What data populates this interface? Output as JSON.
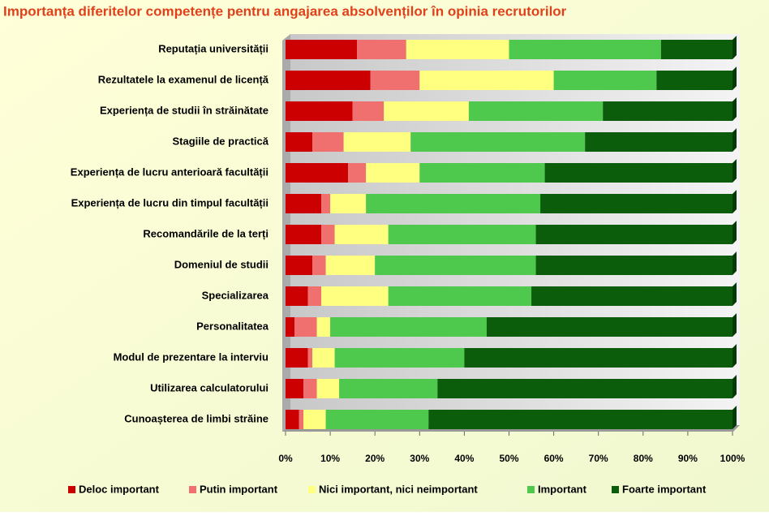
{
  "chart_data": {
    "type": "stacked-bar-horizontal",
    "title": "Importanța diferitelor competențe pentru angajarea absolvenților în opinia recrutorilor",
    "categories": [
      "Reputația universității",
      "Rezultatele la examenul  de licență",
      "Experiența de studii în străinătate",
      "Stagiile de practică",
      "Experiența de lucru anterioară facultății",
      "Experiența de lucru din timpul facultății",
      "Recomandările de la terți",
      "Domeniul de studii",
      "Specializarea",
      "Personalitatea",
      "Modul de prezentare la interviu",
      "Utilizarea calculatorului",
      "Cunoașterea de limbi străine"
    ],
    "series": [
      {
        "name": "Deloc important",
        "color": "#cc0000",
        "values": [
          16,
          19,
          15,
          6,
          14,
          8,
          8,
          6,
          5,
          2,
          5,
          4,
          3
        ]
      },
      {
        "name": "Putin important",
        "color": "#f07070",
        "values": [
          11,
          11,
          7,
          7,
          4,
          2,
          3,
          3,
          3,
          5,
          1,
          3,
          1
        ]
      },
      {
        "name": "Nici important, nici neimportant",
        "color": "#ffff80",
        "values": [
          23,
          30,
          19,
          15,
          12,
          8,
          12,
          11,
          15,
          3,
          5,
          5,
          5
        ]
      },
      {
        "name": "Important",
        "color": "#4ec94e",
        "values": [
          34,
          23,
          30,
          39,
          28,
          39,
          33,
          36,
          32,
          35,
          29,
          22,
          23
        ]
      },
      {
        "name": "Foarte important",
        "color": "#0b5c0b",
        "values": [
          16,
          17,
          29,
          33,
          42,
          43,
          44,
          44,
          45,
          55,
          60,
          66,
          68
        ]
      }
    ],
    "xlim": [
      0,
      100
    ],
    "xticks": [
      {
        "value": 0,
        "label": "0%"
      },
      {
        "value": 10,
        "label": "10%"
      },
      {
        "value": 20,
        "label": "20%"
      },
      {
        "value": 30,
        "label": "30%"
      },
      {
        "value": 40,
        "label": "40%"
      },
      {
        "value": 50,
        "label": "50%"
      },
      {
        "value": 60,
        "label": "60%"
      },
      {
        "value": 70,
        "label": "70%"
      },
      {
        "value": 80,
        "label": "80%"
      },
      {
        "value": 90,
        "label": "90%"
      },
      {
        "value": 100,
        "label": "100%"
      }
    ],
    "legend": "bottom"
  }
}
